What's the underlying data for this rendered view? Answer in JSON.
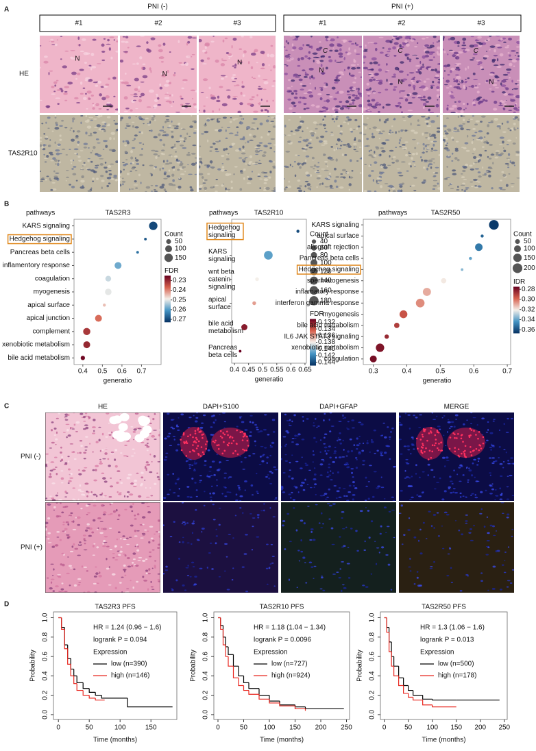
{
  "panel_labels": [
    "A",
    "B",
    "C",
    "D"
  ],
  "panel_a": {
    "groups": [
      {
        "label": "PNI (-)",
        "columns": [
          "#1",
          "#2",
          "#3"
        ]
      },
      {
        "label": "PNI (+)",
        "columns": [
          "#1",
          "#2",
          "#3"
        ]
      }
    ],
    "rows": [
      "HE",
      "TAS2R10"
    ],
    "annotations": {
      "nerve": "N",
      "cancer": "C"
    }
  },
  "panel_c": {
    "columns": [
      "HE",
      "DAPI+S100",
      "DAPI+GFAP",
      "MERGE"
    ],
    "rows": [
      "PNI (-)",
      "PNI (+)"
    ]
  },
  "chart_data": [
    {
      "type": "dotplot",
      "title": "TAS2R3",
      "category_header": "pathways",
      "categories": [
        "KARS signaling",
        "Hedgehog signaling",
        "Pancreas beta cells",
        "inflamentory response",
        "coagulation",
        "myogenesis",
        "apical surface",
        "apical junction",
        "complement",
        "xenobiotic metabolism",
        "bile acid metabolism"
      ],
      "values": [
        0.76,
        0.72,
        0.68,
        0.58,
        0.53,
        0.53,
        0.51,
        0.48,
        0.42,
        0.42,
        0.4
      ],
      "sizes": [
        150,
        15,
        15,
        100,
        70,
        90,
        20,
        100,
        110,
        100,
        40
      ],
      "fdr": [
        0.27,
        0.268,
        0.265,
        0.258,
        0.252,
        0.25,
        0.245,
        0.238,
        0.232,
        0.23,
        0.226
      ],
      "highlight": 1,
      "highlight_color": "#e0881c",
      "xlabel": "generatio",
      "xlim": [
        0.355,
        0.8
      ],
      "xticks": [
        0.4,
        0.5,
        0.6,
        0.7
      ],
      "size_legend": {
        "title": "Count",
        "values": [
          50,
          100,
          150
        ]
      },
      "color_legend": {
        "title": "FDR",
        "lim": [
          0.225,
          0.273
        ],
        "ticks": [
          0.23,
          0.24,
          0.25,
          0.26,
          0.27
        ],
        "colorscale": [
          "#67001f",
          "#d6604d",
          "#f4efe9",
          "#4393c3",
          "#053061"
        ]
      }
    },
    {
      "type": "dotplot",
      "title": "TAS2R10",
      "category_header": "pathways",
      "categories": [
        "Hedgehog signaling",
        "KARS signaling",
        "wnt beta catenin signaling",
        "apical surface",
        "bile acid metabolism",
        "Pancreas beta cells"
      ],
      "values": [
        0.625,
        0.52,
        0.48,
        0.47,
        0.435,
        0.42
      ],
      "sizes": [
        20,
        160,
        30,
        30,
        80,
        15
      ],
      "fdr": [
        0.144,
        0.141,
        0.138,
        0.136,
        0.132,
        0.131
      ],
      "highlight": 0,
      "highlight_color": "#e0881c",
      "xlabel": "generatio",
      "xlim": [
        0.39,
        0.655
      ],
      "xticks": [
        0.4,
        0.45,
        0.5,
        0.55,
        0.6,
        0.65
      ],
      "size_legend": {
        "title": "Count",
        "values": [
          40,
          60,
          80,
          100,
          120,
          140,
          160,
          180
        ]
      },
      "color_legend": {
        "title": "FDR",
        "lim": [
          0.131,
          0.145
        ],
        "ticks": [
          0.132,
          0.134,
          0.136,
          0.138,
          {
            "value": 0.14,
            "label": "0.140"
          },
          0.142,
          0.144
        ],
        "colorscale": [
          "#67001f",
          "#d6604d",
          "#f4efe9",
          "#4393c3",
          "#053061"
        ]
      }
    },
    {
      "type": "dotplot",
      "title": "TAS2R50",
      "category_header": "pathways",
      "categories": [
        "KARS signaling",
        "apical surface",
        "allograft rejection",
        "Pancreas beta cells",
        "Hedgehog signaling",
        "spermatogenesis",
        "inflamatory response",
        "interferon gamma response",
        "myogenesis",
        "bile acid metabolism",
        "IL6 JAK STAT3 signaling",
        "xenobiotic metabolism",
        "coagulation"
      ],
      "values": [
        0.66,
        0.625,
        0.615,
        0.59,
        0.565,
        0.51,
        0.46,
        0.44,
        0.39,
        0.37,
        0.34,
        0.32,
        0.3
      ],
      "sizes": [
        200,
        20,
        120,
        20,
        15,
        60,
        140,
        160,
        130,
        60,
        40,
        150,
        100
      ],
      "fdr": [
        0.365,
        0.355,
        0.35,
        0.34,
        0.335,
        0.32,
        0.31,
        0.305,
        0.295,
        0.29,
        0.285,
        0.28,
        0.278
      ],
      "highlight": 4,
      "highlight_color": "#e0881c",
      "xlabel": "generatio",
      "xlim": [
        0.27,
        0.71
      ],
      "xticks": [
        0.3,
        0.4,
        0.5,
        0.6,
        0.7
      ],
      "size_legend": {
        "title": "Count",
        "values": [
          50,
          100,
          150,
          200
        ]
      },
      "color_legend": {
        "title": "IDR",
        "lim": [
          0.275,
          0.367
        ],
        "ticks": [
          0.28,
          {
            "value": 0.3,
            "label": "0.30"
          },
          0.32,
          0.34,
          0.36
        ],
        "colorscale": [
          "#67001f",
          "#d6604d",
          "#f4efe9",
          "#4393c3",
          "#053061"
        ]
      }
    },
    {
      "type": "km",
      "title": "TAS2R3  PFS",
      "annotations": [
        "HR = 1.24 (0.96 − 1.6)",
        "logrank P = 0.094"
      ],
      "legend_title": "Expression",
      "series": [
        {
          "name": "low (n=390)",
          "color": "#000000",
          "x": [
            0,
            5,
            10,
            15,
            20,
            25,
            30,
            40,
            50,
            60,
            70,
            112,
            185
          ],
          "values": [
            1,
            0.9,
            0.72,
            0.58,
            0.47,
            0.4,
            0.33,
            0.27,
            0.23,
            0.2,
            0.17,
            0.08,
            0.08
          ]
        },
        {
          "name": "high (n=146)",
          "color": "#e8261e",
          "x": [
            0,
            5,
            10,
            15,
            20,
            25,
            30,
            40,
            50,
            60,
            75
          ],
          "values": [
            1,
            0.88,
            0.68,
            0.52,
            0.4,
            0.32,
            0.25,
            0.2,
            0.17,
            0.15,
            0.15
          ]
        }
      ],
      "xlabel": "Time (months)",
      "ylabel": "Probability",
      "xlim": [
        -8,
        192
      ],
      "ylim": [
        -0.05,
        1.06
      ],
      "xticks": [
        0,
        50,
        100,
        150
      ],
      "yticks": [
        {
          "value": 0,
          "label": "0.0"
        },
        0.2,
        0.4,
        0.6,
        0.8,
        {
          "value": 1,
          "label": "1.0"
        }
      ]
    },
    {
      "type": "km",
      "title": "TAS2R10 PFS",
      "annotations": [
        "HR = 1.18 (1.04 − 1.34)",
        "logrank P = 0.0096"
      ],
      "legend_title": "Expression",
      "series": [
        {
          "name": "low (n=727)",
          "color": "#000000",
          "x": [
            0,
            5,
            10,
            15,
            20,
            30,
            40,
            50,
            60,
            80,
            100,
            120,
            150,
            170,
            245
          ],
          "values": [
            1,
            0.92,
            0.8,
            0.7,
            0.62,
            0.5,
            0.4,
            0.33,
            0.27,
            0.2,
            0.14,
            0.1,
            0.08,
            0.06,
            0.06
          ]
        },
        {
          "name": "high (n=924)",
          "color": "#e8261e",
          "x": [
            0,
            5,
            10,
            15,
            20,
            30,
            40,
            50,
            60,
            80,
            100,
            120,
            150,
            170
          ],
          "values": [
            1,
            0.88,
            0.72,
            0.6,
            0.5,
            0.38,
            0.3,
            0.25,
            0.21,
            0.16,
            0.12,
            0.09,
            0.06,
            0.04
          ]
        }
      ],
      "xlabel": "Time (months)",
      "ylabel": "Probability",
      "xlim": [
        -8,
        256
      ],
      "ylim": [
        -0.05,
        1.06
      ],
      "xticks": [
        0,
        50,
        100,
        150,
        200,
        250
      ],
      "yticks": [
        {
          "value": 0,
          "label": "0.0"
        },
        0.2,
        0.4,
        0.6,
        0.8,
        {
          "value": 1,
          "label": "1.0"
        }
      ]
    },
    {
      "type": "km",
      "title": "TAS2R50 PFS",
      "annotations": [
        "HR = 1.3 (1.06 − 1.6)",
        "logrank P = 0.013"
      ],
      "legend_title": "Expression",
      "series": [
        {
          "name": "low (n=500)",
          "color": "#000000",
          "x": [
            0,
            5,
            10,
            15,
            20,
            30,
            40,
            50,
            60,
            80,
            100,
            150,
            240
          ],
          "values": [
            1,
            0.9,
            0.75,
            0.6,
            0.5,
            0.38,
            0.3,
            0.25,
            0.2,
            0.16,
            0.15,
            0.15,
            0.15
          ]
        },
        {
          "name": "high (n=178)",
          "color": "#e8261e",
          "x": [
            0,
            5,
            10,
            15,
            20,
            30,
            40,
            50,
            60,
            80,
            100,
            150
          ],
          "values": [
            1,
            0.85,
            0.65,
            0.5,
            0.4,
            0.3,
            0.22,
            0.18,
            0.15,
            0.1,
            0.08,
            0.08
          ]
        }
      ],
      "xlabel": "Time (months)",
      "ylabel": "Probability",
      "xlim": [
        -8,
        256
      ],
      "ylim": [
        -0.05,
        1.06
      ],
      "xticks": [
        0,
        50,
        100,
        150,
        200,
        250
      ],
      "yticks": [
        {
          "value": 0,
          "label": "0.0"
        },
        0.2,
        0.4,
        0.6,
        0.8,
        {
          "value": 1,
          "label": "1.0"
        }
      ]
    }
  ]
}
